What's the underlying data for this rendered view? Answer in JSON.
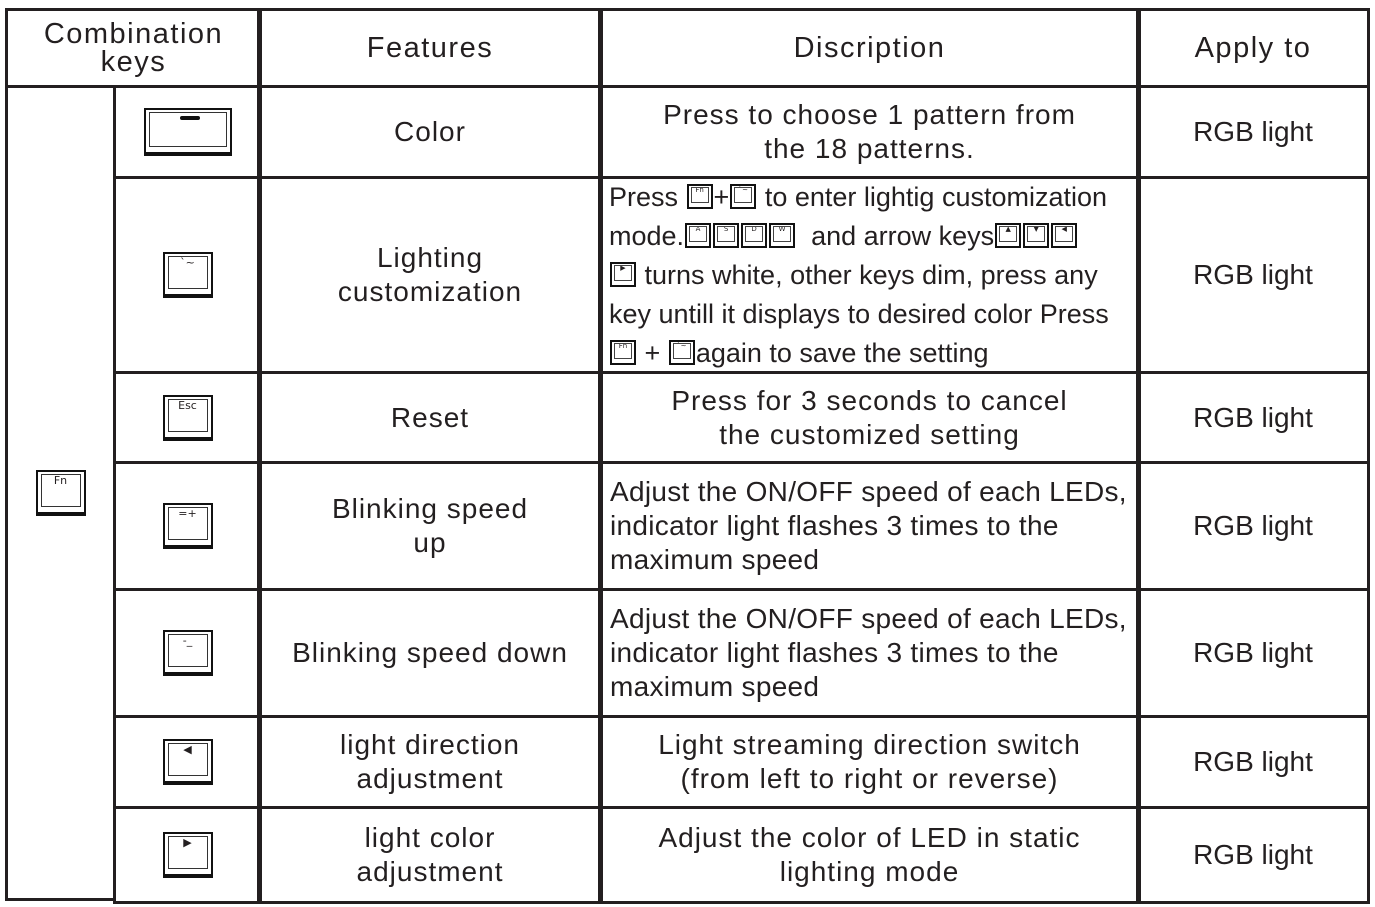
{
  "headers": {
    "combination": "Combination keys",
    "features": "Features",
    "description": "Discription",
    "apply": "Apply to"
  },
  "fn_key": "Fn",
  "rows": [
    {
      "key": "—",
      "feature": "Color",
      "description": "Press to choose 1 pattern from the 18 patterns.",
      "apply": "RGB light"
    },
    {
      "key": "`~",
      "feature": "Lighting customization",
      "apply": "RGB light",
      "desc_parts": [
        "Press",
        "+",
        "to enter lightig customization",
        "mode.",
        "and arrow keys",
        "turns white, other keys dim, press any",
        "key untill it displays to desired color Press",
        "+",
        "again to save the setting"
      ],
      "desc_keys": [
        "Fn",
        "`~",
        "A",
        "S",
        "D",
        "W",
        "▲",
        "▼",
        "◀",
        "▶",
        "Fn",
        "`~"
      ]
    },
    {
      "key": "Esc",
      "feature": "Reset",
      "description": "Press for 3 seconds to cancel the customized setting",
      "apply": "RGB light"
    },
    {
      "key": "=+",
      "feature": "Blinking speed up",
      "description": "Adjust the ON/OFF speed of each LEDs, indicator light flashes 3 times to the maximum speed",
      "apply": "RGB light"
    },
    {
      "key": "-_",
      "feature": "Blinking speed down",
      "description": "Adjust the ON/OFF speed of each LEDs, indicator light flashes 3 times to the maximum speed",
      "apply": "RGB light"
    },
    {
      "key": "◀",
      "feature": "light direction adjustment",
      "description": "Light streaming direction switch (from left to right or reverse)",
      "apply": "RGB light"
    },
    {
      "key": "▶",
      "feature": "light color adjustment",
      "description": "Adjust the color of LED in static lighting mode",
      "apply": "RGB light"
    }
  ]
}
